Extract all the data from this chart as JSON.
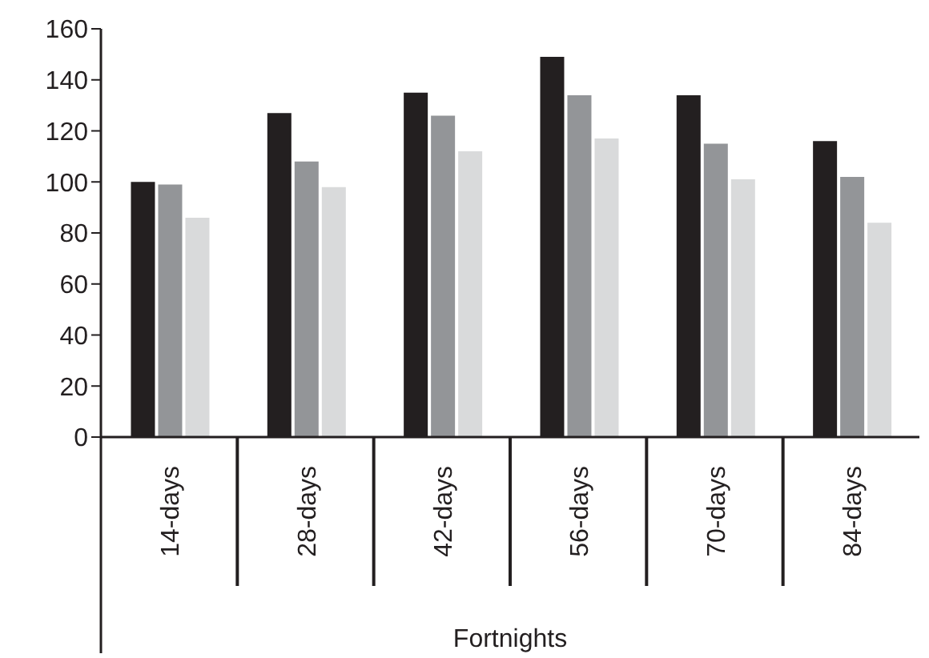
{
  "chart_data": {
    "type": "bar",
    "xlabel": "Fortnights",
    "categories": [
      "14-days",
      "28-days",
      "42-days",
      "56-days",
      "70-days",
      "84-days"
    ],
    "series": [
      {
        "color": "#231f20",
        "values": [
          100,
          127,
          135,
          149,
          134,
          116
        ]
      },
      {
        "color": "#939598",
        "values": [
          99,
          108,
          126,
          134,
          115,
          102
        ]
      },
      {
        "color": "#d9dadb",
        "values": [
          86,
          98,
          112,
          117,
          101,
          84
        ]
      }
    ],
    "ylim": [
      0,
      160
    ],
    "yticks": [
      0,
      20,
      40,
      60,
      80,
      100,
      120,
      140,
      160
    ],
    "grid": false,
    "legend": false
  }
}
